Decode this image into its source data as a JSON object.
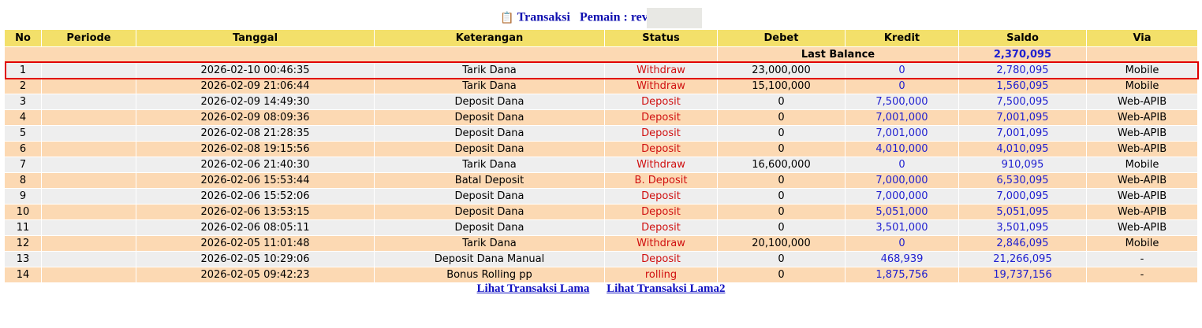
{
  "title": {
    "icon": "clipboard-icon",
    "label": "Transaksi",
    "player_label": "Pemain : rev"
  },
  "columns": [
    "No",
    "Periode",
    "Tanggal",
    "Keterangan",
    "Status",
    "Debet",
    "Kredit",
    "Saldo",
    "Via"
  ],
  "last_balance": {
    "label": "Last Balance",
    "value": "2,370,095"
  },
  "rows": [
    {
      "no": "1",
      "periode": "",
      "tanggal": "2026-02-10 00:46:35",
      "ket": "Tarik Dana",
      "status": "Withdraw",
      "debet": "23,000,000",
      "kredit": "0",
      "saldo": "2,780,095",
      "via": "Mobile"
    },
    {
      "no": "2",
      "periode": "",
      "tanggal": "2026-02-09 21:06:44",
      "ket": "Tarik Dana",
      "status": "Withdraw",
      "debet": "15,100,000",
      "kredit": "0",
      "saldo": "1,560,095",
      "via": "Mobile"
    },
    {
      "no": "3",
      "periode": "",
      "tanggal": "2026-02-09 14:49:30",
      "ket": "Deposit Dana",
      "status": "Deposit",
      "debet": "0",
      "kredit": "7,500,000",
      "saldo": "7,500,095",
      "via": "Web-APIB"
    },
    {
      "no": "4",
      "periode": "",
      "tanggal": "2026-02-09 08:09:36",
      "ket": "Deposit Dana",
      "status": "Deposit",
      "debet": "0",
      "kredit": "7,001,000",
      "saldo": "7,001,095",
      "via": "Web-APIB"
    },
    {
      "no": "5",
      "periode": "",
      "tanggal": "2026-02-08 21:28:35",
      "ket": "Deposit Dana",
      "status": "Deposit",
      "debet": "0",
      "kredit": "7,001,000",
      "saldo": "7,001,095",
      "via": "Web-APIB"
    },
    {
      "no": "6",
      "periode": "",
      "tanggal": "2026-02-08 19:15:56",
      "ket": "Deposit Dana",
      "status": "Deposit",
      "debet": "0",
      "kredit": "4,010,000",
      "saldo": "4,010,095",
      "via": "Web-APIB"
    },
    {
      "no": "7",
      "periode": "",
      "tanggal": "2026-02-06 21:40:30",
      "ket": "Tarik Dana",
      "status": "Withdraw",
      "debet": "16,600,000",
      "kredit": "0",
      "saldo": "910,095",
      "via": "Mobile"
    },
    {
      "no": "8",
      "periode": "",
      "tanggal": "2026-02-06 15:53:44",
      "ket": "Batal Deposit",
      "status": "B. Deposit",
      "debet": "0",
      "kredit": "7,000,000",
      "saldo": "6,530,095",
      "via": "Web-APIB"
    },
    {
      "no": "9",
      "periode": "",
      "tanggal": "2026-02-06 15:52:06",
      "ket": "Deposit Dana",
      "status": "Deposit",
      "debet": "0",
      "kredit": "7,000,000",
      "saldo": "7,000,095",
      "via": "Web-APIB"
    },
    {
      "no": "10",
      "periode": "",
      "tanggal": "2026-02-06 13:53:15",
      "ket": "Deposit Dana",
      "status": "Deposit",
      "debet": "0",
      "kredit": "5,051,000",
      "saldo": "5,051,095",
      "via": "Web-APIB"
    },
    {
      "no": "11",
      "periode": "",
      "tanggal": "2026-02-06 08:05:11",
      "ket": "Deposit Dana",
      "status": "Deposit",
      "debet": "0",
      "kredit": "3,501,000",
      "saldo": "3,501,095",
      "via": "Web-APIB"
    },
    {
      "no": "12",
      "periode": "",
      "tanggal": "2026-02-05 11:01:48",
      "ket": "Tarik Dana",
      "status": "Withdraw",
      "debet": "20,100,000",
      "kredit": "0",
      "saldo": "2,846,095",
      "via": "Mobile"
    },
    {
      "no": "13",
      "periode": "",
      "tanggal": "2026-02-05 10:29:06",
      "ket": "Deposit Dana Manual",
      "status": "Deposit",
      "debet": "0",
      "kredit": "468,939",
      "saldo": "21,266,095",
      "via": "-"
    },
    {
      "no": "14",
      "periode": "",
      "tanggal": "2026-02-05 09:42:23",
      "ket": "Bonus Rolling pp",
      "status": "rolling",
      "debet": "0",
      "kredit": "1,875,756",
      "saldo": "19,737,156",
      "via": "-"
    }
  ],
  "links": [
    "Lihat Transaksi Lama",
    "Lihat Transaksi Lama2"
  ],
  "colors": {
    "header": "#f3e06a",
    "row_even": "#fcd9b3",
    "row_odd": "#eeeeee",
    "status": "#d01010",
    "amount": "#2020d0",
    "highlight": "#e00000"
  }
}
